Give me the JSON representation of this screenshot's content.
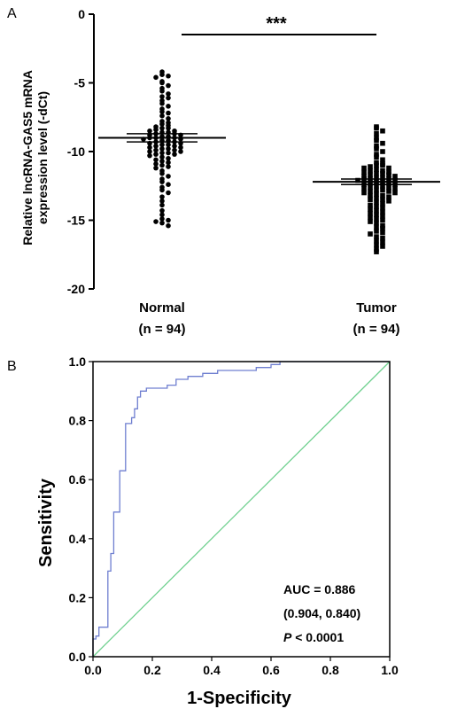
{
  "chart_data": [
    {
      "panel": "A",
      "type": "scatter",
      "ylabel_line1": "Relative lncRNA-GAS5 mRNA",
      "ylabel_line2": "expression level (-dCt)",
      "ylim": [
        -20,
        0
      ],
      "yticks": [
        "0",
        "-5",
        "-10",
        "-15",
        "-20"
      ],
      "significance": "***",
      "categories": [
        {
          "name": "Normal",
          "n_label": "(n = 94)",
          "mean": -9.0,
          "sem": 0.3,
          "marker": "circle"
        },
        {
          "name": "Tumor",
          "n_label": "(n = 94)",
          "mean": -12.2,
          "sem": 0.2,
          "marker": "square"
        }
      ],
      "series": [
        {
          "name": "Normal",
          "values": [
            -4.2,
            -4.4,
            -4.5,
            -4.6,
            -4.9,
            -5.0,
            -5.2,
            -5.4,
            -5.6,
            -5.8,
            -6.0,
            -6.1,
            -6.3,
            -6.5,
            -6.7,
            -6.9,
            -7.1,
            -7.2,
            -7.4,
            -7.6,
            -7.8,
            -7.9,
            -8.0,
            -8.1,
            -8.2,
            -8.3,
            -8.3,
            -8.4,
            -8.5,
            -8.5,
            -8.6,
            -8.6,
            -8.7,
            -8.7,
            -8.8,
            -8.8,
            -8.9,
            -8.9,
            -9.0,
            -9.0,
            -9.0,
            -9.1,
            -9.1,
            -9.2,
            -9.2,
            -9.3,
            -9.3,
            -9.4,
            -9.4,
            -9.5,
            -9.5,
            -9.6,
            -9.6,
            -9.7,
            -9.7,
            -9.8,
            -9.8,
            -9.9,
            -9.9,
            -10.0,
            -10.0,
            -10.1,
            -10.1,
            -10.2,
            -10.2,
            -10.3,
            -10.4,
            -10.5,
            -10.6,
            -10.7,
            -10.8,
            -10.9,
            -11.0,
            -11.1,
            -11.2,
            -11.4,
            -11.6,
            -11.8,
            -12.0,
            -12.2,
            -12.4,
            -12.6,
            -12.8,
            -13.0,
            -13.3,
            -13.6,
            -13.9,
            -14.3,
            -14.6,
            -14.9,
            -15.0,
            -15.1,
            -15.2,
            -15.4
          ]
        },
        {
          "name": "Tumor",
          "values": [
            -8.2,
            -8.3,
            -8.5,
            -8.7,
            -9.0,
            -9.2,
            -9.4,
            -9.6,
            -9.8,
            -10.0,
            -10.2,
            -10.4,
            -10.6,
            -10.8,
            -10.9,
            -11.0,
            -11.0,
            -11.1,
            -11.2,
            -11.2,
            -11.3,
            -11.4,
            -11.4,
            -11.5,
            -11.5,
            -11.6,
            -11.6,
            -11.7,
            -11.7,
            -11.8,
            -11.8,
            -11.9,
            -11.9,
            -12.0,
            -12.0,
            -12.0,
            -12.1,
            -12.1,
            -12.2,
            -12.2,
            -12.3,
            -12.3,
            -12.4,
            -12.4,
            -12.5,
            -12.5,
            -12.6,
            -12.6,
            -12.7,
            -12.7,
            -12.8,
            -12.8,
            -12.9,
            -12.9,
            -13.0,
            -13.0,
            -13.1,
            -13.2,
            -13.2,
            -13.3,
            -13.4,
            -13.5,
            -13.5,
            -13.6,
            -13.7,
            -13.8,
            -13.9,
            -14.0,
            -14.1,
            -14.2,
            -14.3,
            -14.4,
            -14.5,
            -14.6,
            -14.7,
            -14.8,
            -14.9,
            -15.0,
            -15.1,
            -15.2,
            -15.4,
            -15.5,
            -15.6,
            -15.8,
            -15.9,
            -16.0,
            -16.2,
            -16.3,
            -16.5,
            -16.6,
            -16.8,
            -16.9,
            -17.1,
            -17.3
          ]
        }
      ]
    },
    {
      "panel": "B",
      "type": "line",
      "xlabel": "1-Specificity",
      "ylabel": "Sensitivity",
      "xlim": [
        0,
        1
      ],
      "ylim": [
        0,
        1
      ],
      "xticks": [
        "0.0",
        "0.2",
        "0.4",
        "0.6",
        "0.8",
        "1.0"
      ],
      "yticks": [
        "0.0",
        "0.2",
        "0.4",
        "0.6",
        "0.8",
        "1.0"
      ],
      "annotations": {
        "auc": "AUC = 0.886",
        "ci": "(0.904, 0.840)",
        "p_italic": "P",
        "p_rest": " < 0.0001"
      },
      "series": [
        {
          "name": "ROC",
          "color": "#6f7fd0",
          "points": [
            [
              0,
              0
            ],
            [
              0,
              0.06
            ],
            [
              0.01,
              0.06
            ],
            [
              0.01,
              0.07
            ],
            [
              0.02,
              0.07
            ],
            [
              0.02,
              0.1
            ],
            [
              0.05,
              0.1
            ],
            [
              0.05,
              0.29
            ],
            [
              0.06,
              0.29
            ],
            [
              0.06,
              0.35
            ],
            [
              0.07,
              0.35
            ],
            [
              0.07,
              0.49
            ],
            [
              0.09,
              0.49
            ],
            [
              0.09,
              0.63
            ],
            [
              0.11,
              0.63
            ],
            [
              0.11,
              0.79
            ],
            [
              0.13,
              0.79
            ],
            [
              0.13,
              0.81
            ],
            [
              0.14,
              0.81
            ],
            [
              0.14,
              0.84
            ],
            [
              0.15,
              0.84
            ],
            [
              0.15,
              0.88
            ],
            [
              0.16,
              0.88
            ],
            [
              0.16,
              0.9
            ],
            [
              0.18,
              0.9
            ],
            [
              0.18,
              0.91
            ],
            [
              0.25,
              0.91
            ],
            [
              0.25,
              0.92
            ],
            [
              0.28,
              0.92
            ],
            [
              0.28,
              0.94
            ],
            [
              0.32,
              0.94
            ],
            [
              0.32,
              0.95
            ],
            [
              0.37,
              0.95
            ],
            [
              0.37,
              0.96
            ],
            [
              0.42,
              0.96
            ],
            [
              0.42,
              0.97
            ],
            [
              0.55,
              0.97
            ],
            [
              0.55,
              0.98
            ],
            [
              0.6,
              0.98
            ],
            [
              0.6,
              0.99
            ],
            [
              0.63,
              0.99
            ],
            [
              0.63,
              1.0
            ],
            [
              1.0,
              1.0
            ]
          ]
        },
        {
          "name": "Reference",
          "color": "#6fd08f",
          "points": [
            [
              0,
              0
            ],
            [
              1,
              1
            ]
          ]
        }
      ]
    }
  ]
}
